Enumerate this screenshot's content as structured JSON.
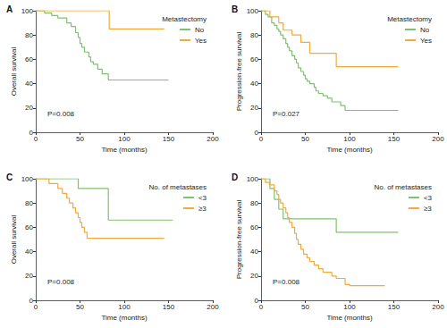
{
  "chart_data": [
    {
      "type": "line",
      "panel": "A",
      "y_label": "Overall survival",
      "x_label": "Time (months)",
      "legend_title": "Metastectomy",
      "p_value": "P=0.008",
      "legend": "upper right",
      "grid": false,
      "line_style": "step",
      "xlim": [
        0,
        200
      ],
      "xticks": [
        0,
        50,
        100,
        150,
        200
      ],
      "ylim": [
        0,
        100
      ],
      "yticks": [
        0,
        20,
        40,
        60,
        80,
        100
      ],
      "series": [
        {
          "name": "No",
          "color": "#7dc36b",
          "x": [
            0,
            10,
            18,
            25,
            35,
            40,
            45,
            48,
            50,
            52,
            55,
            60,
            62,
            65,
            70,
            75,
            82,
            150
          ],
          "values": [
            100,
            98,
            96,
            94,
            90,
            87,
            82,
            78,
            73,
            70,
            66,
            62,
            58,
            56,
            52,
            48,
            43,
            43
          ]
        },
        {
          "name": "Yes",
          "color": "#f4a93b",
          "x": [
            0,
            83,
            145
          ],
          "values": [
            100,
            85,
            85
          ]
        }
      ]
    },
    {
      "type": "line",
      "panel": "B",
      "y_label": "Progression-free survival",
      "x_label": "Time (months)",
      "legend_title": "Metastectomy",
      "p_value": "P=0.027",
      "legend": "upper right",
      "grid": false,
      "line_style": "step",
      "xlim": [
        0,
        200
      ],
      "xticks": [
        0,
        50,
        100,
        150,
        200
      ],
      "ylim": [
        0,
        100
      ],
      "yticks": [
        0,
        20,
        40,
        60,
        80,
        100
      ],
      "series": [
        {
          "name": "No",
          "color": "#7dc36b",
          "x": [
            0,
            5,
            8,
            12,
            15,
            18,
            20,
            22,
            25,
            28,
            30,
            32,
            35,
            38,
            40,
            42,
            45,
            48,
            50,
            52,
            55,
            60,
            62,
            65,
            70,
            75,
            80,
            90,
            95,
            155
          ],
          "values": [
            100,
            97,
            95,
            90,
            88,
            85,
            83,
            80,
            77,
            73,
            70,
            67,
            63,
            60,
            57,
            53,
            50,
            47,
            44,
            42,
            40,
            37,
            34,
            32,
            30,
            28,
            25,
            22,
            18,
            18
          ]
        },
        {
          "name": "Yes",
          "color": "#f4a93b",
          "x": [
            0,
            10,
            20,
            25,
            35,
            45,
            55,
            85,
            155
          ],
          "values": [
            100,
            95,
            90,
            84,
            80,
            74,
            65,
            54,
            54
          ]
        }
      ]
    },
    {
      "type": "line",
      "panel": "C",
      "y_label": "Overall survival",
      "x_label": "Time (months)",
      "legend_title": "No. of metastases",
      "p_value": "P=0.008",
      "legend": "upper right",
      "grid": false,
      "line_style": "step",
      "xlim": [
        0,
        200
      ],
      "xticks": [
        0,
        50,
        100,
        150,
        200
      ],
      "ylim": [
        0,
        100
      ],
      "yticks": [
        0,
        20,
        40,
        60,
        80,
        100
      ],
      "series": [
        {
          "name": "<3",
          "color": "#7dc36b",
          "x": [
            0,
            48,
            82,
            155
          ],
          "values": [
            100,
            92,
            66,
            66
          ]
        },
        {
          "name": "≥3",
          "color": "#f4a93b",
          "x": [
            0,
            15,
            25,
            30,
            35,
            38,
            42,
            45,
            48,
            50,
            52,
            55,
            58,
            145
          ],
          "values": [
            100,
            96,
            92,
            88,
            84,
            80,
            76,
            72,
            68,
            64,
            60,
            56,
            51,
            51
          ]
        }
      ]
    },
    {
      "type": "line",
      "panel": "D",
      "y_label": "Progression-free survival",
      "x_label": "Time (months)",
      "legend_title": "No. of metastases",
      "p_value": "P=0.008",
      "legend": "upper right",
      "grid": false,
      "line_style": "step",
      "xlim": [
        0,
        200
      ],
      "xticks": [
        0,
        50,
        100,
        150,
        200
      ],
      "ylim": [
        0,
        100
      ],
      "yticks": [
        0,
        20,
        40,
        60,
        80,
        100
      ],
      "series": [
        {
          "name": "<3",
          "color": "#7dc36b",
          "x": [
            0,
            10,
            15,
            20,
            25,
            85,
            155
          ],
          "values": [
            100,
            92,
            83,
            75,
            67,
            56,
            56
          ]
        },
        {
          "name": "≥3",
          "color": "#f4a93b",
          "x": [
            0,
            5,
            10,
            15,
            18,
            20,
            22,
            25,
            28,
            30,
            32,
            35,
            38,
            40,
            42,
            45,
            48,
            52,
            55,
            60,
            65,
            70,
            80,
            85,
            95,
            100,
            140
          ],
          "values": [
            100,
            97,
            95,
            90,
            87,
            83,
            80,
            76,
            72,
            68,
            64,
            60,
            55,
            50,
            46,
            42,
            38,
            35,
            32,
            29,
            26,
            23,
            20,
            18,
            13,
            12,
            12
          ]
        }
      ]
    }
  ]
}
